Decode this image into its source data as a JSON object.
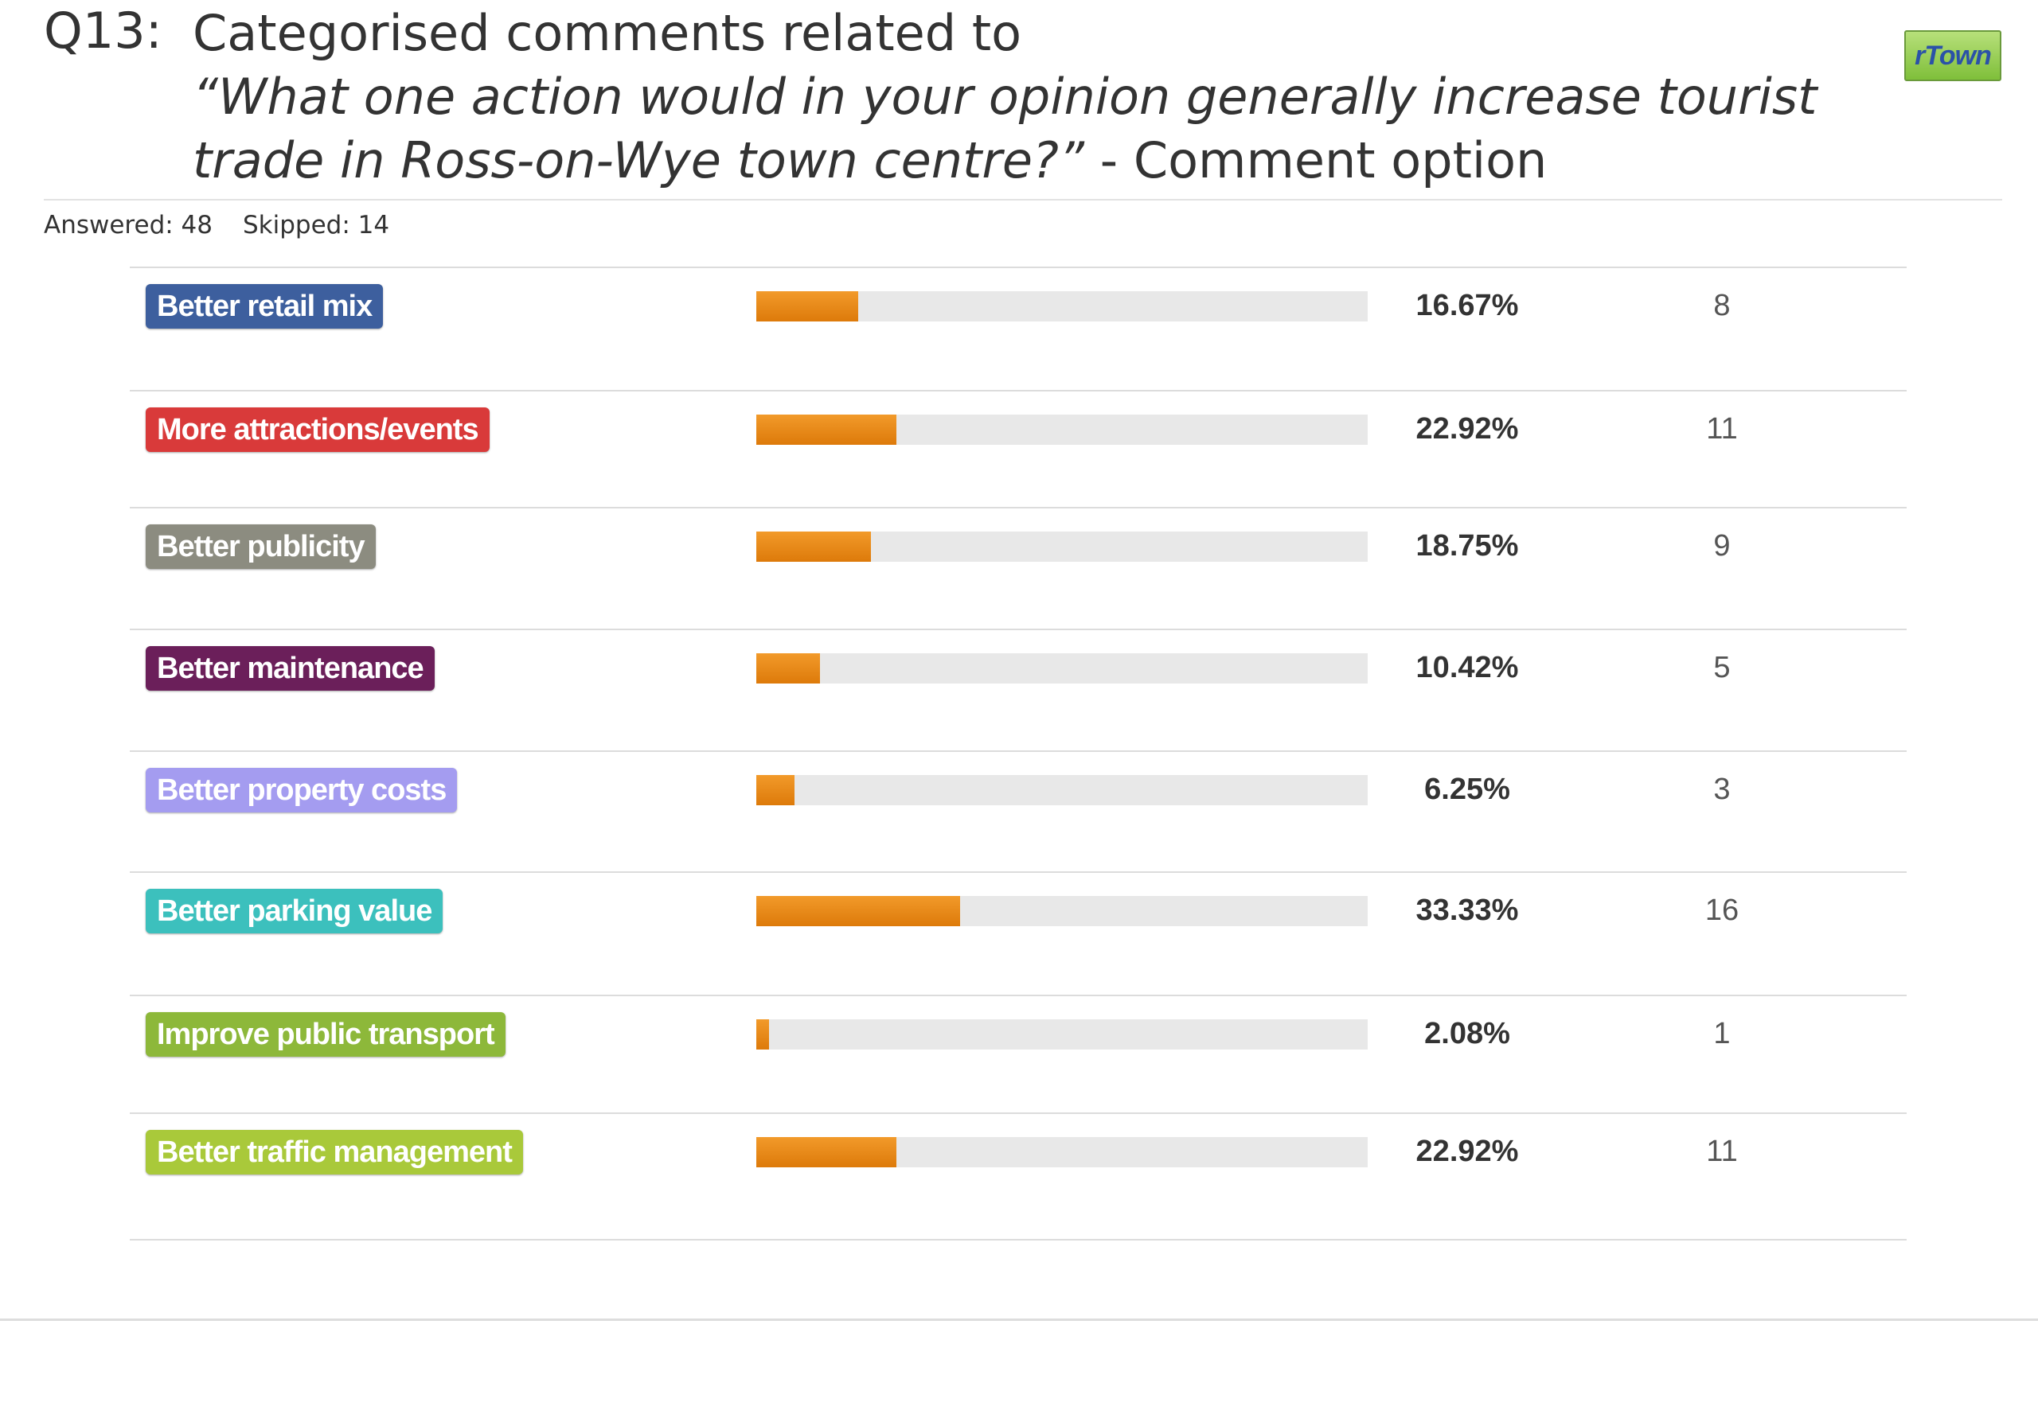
{
  "header": {
    "question_number": "Q13:",
    "title_line1": "Categorised comments related to",
    "title_line2": "“What one action would in your opinion generally increase tourist",
    "title_line3_italic": "trade in Ross-on-Wye town centre?”",
    "title_line3_rest": " - Comment option",
    "logo_text": "rTown"
  },
  "stats": {
    "answered": "Answered: 48",
    "skipped": "Skipped: 14"
  },
  "chart_data": {
    "type": "bar",
    "orientation": "horizontal",
    "xlim": [
      0,
      100
    ],
    "categories": [
      "Better retail mix",
      "More attractions/events",
      "Better publicity",
      "Better maintenance",
      "Better property costs",
      "Better parking value",
      "Improve public transport",
      "Better traffic management"
    ],
    "values": [
      16.67,
      22.92,
      18.75,
      10.42,
      6.25,
      33.33,
      2.08,
      22.92
    ],
    "percent_labels": [
      "16.67%",
      "22.92%",
      "18.75%",
      "10.42%",
      "6.25%",
      "33.33%",
      "2.08%",
      "22.92%"
    ],
    "counts": [
      "8",
      "11",
      "9",
      "5",
      "3",
      "16",
      "1",
      "11"
    ],
    "label_colors": [
      "#3d5f9e",
      "#d93a3a",
      "#8c8c80",
      "#6b1f5a",
      "#a49cf0",
      "#3cc0bd",
      "#8db83a",
      "#a9c93a"
    ],
    "bar_color": "#e8860f",
    "track_color": "#e8e8e8"
  }
}
